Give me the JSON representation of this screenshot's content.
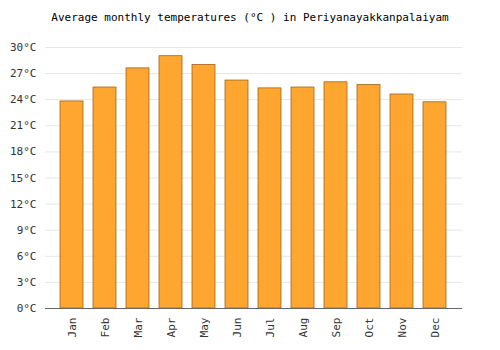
{
  "chart_data": {
    "type": "bar",
    "title": "Average monthly temperatures (°C ) in Periyanayakkanpalaiyam",
    "categories": [
      "Jan",
      "Feb",
      "Mar",
      "Apr",
      "May",
      "Jun",
      "Jul",
      "Aug",
      "Sep",
      "Oct",
      "Nov",
      "Dec"
    ],
    "values": [
      23.8,
      25.4,
      27.6,
      29.0,
      28.0,
      26.2,
      25.3,
      25.4,
      26.0,
      25.7,
      24.6,
      23.7
    ],
    "color": "#ffa630",
    "ylim": [
      0,
      30
    ],
    "yticks": [
      {
        "value": 0,
        "label": "0°C"
      },
      {
        "value": 3,
        "label": "3°C"
      },
      {
        "value": 6,
        "label": "6°C"
      },
      {
        "value": 9,
        "label": "9°C"
      },
      {
        "value": 12,
        "label": "12°C"
      },
      {
        "value": 15,
        "label": "15°C"
      },
      {
        "value": 18,
        "label": "18°C"
      },
      {
        "value": 21,
        "label": "21°C"
      },
      {
        "value": 24,
        "label": "24°C"
      },
      {
        "value": 27,
        "label": "27°C"
      },
      {
        "value": 30,
        "label": "30°C"
      }
    ],
    "grid": true
  }
}
